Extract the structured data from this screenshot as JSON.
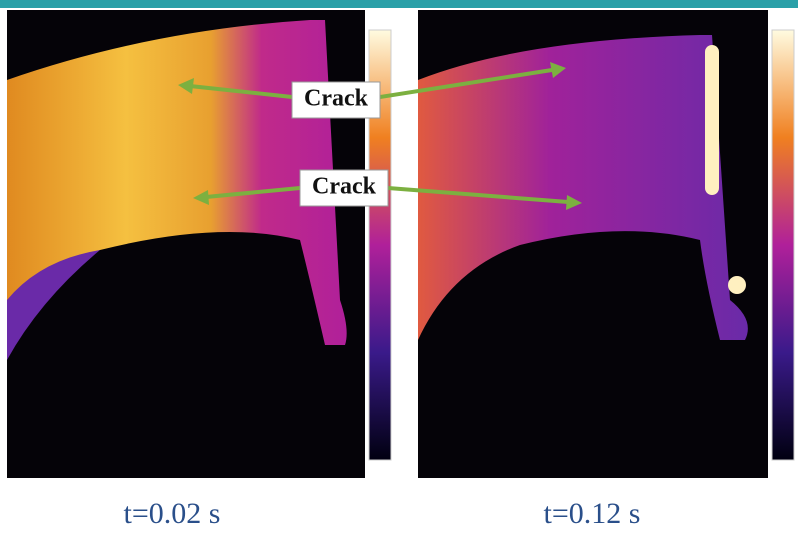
{
  "panels": [
    {
      "caption": "t=0.02 s"
    },
    {
      "caption": "t=0.12 s"
    }
  ],
  "annotations": [
    {
      "label": "Crack"
    },
    {
      "label": "Crack"
    }
  ]
}
